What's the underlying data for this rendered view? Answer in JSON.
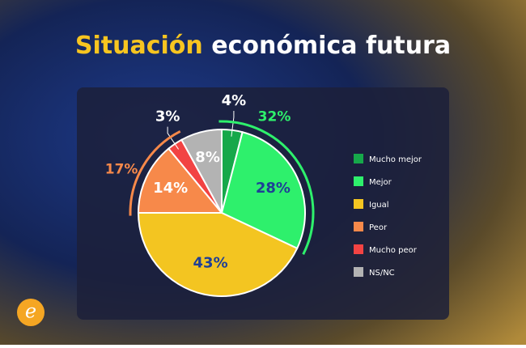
{
  "chart_data": {
    "type": "pie",
    "title": [
      "Situación",
      "económica futura"
    ],
    "categories": [
      "Mucho mejor",
      "Mejor",
      "Igual",
      "Peor",
      "Mucho peor",
      "NS/NC"
    ],
    "values": [
      4,
      28,
      43,
      14,
      3,
      8
    ],
    "value_labels": [
      "4%",
      "28%",
      "43%",
      "14%",
      "3%",
      "8%"
    ],
    "colors": [
      "#16a84a",
      "#2ef06c",
      "#f3c521",
      "#f7894a",
      "#f24343",
      "#b3b3b3"
    ],
    "label_colors": [
      "#ffffff",
      "#1f3f96",
      "#1f3f96",
      "#ffffff",
      "#ffffff",
      "#ffffff"
    ],
    "annotations": [
      {
        "text": "32%",
        "color": "#2ef06c"
      },
      {
        "text": "17%",
        "color": "#f7894a"
      }
    ],
    "legend": "right"
  }
}
